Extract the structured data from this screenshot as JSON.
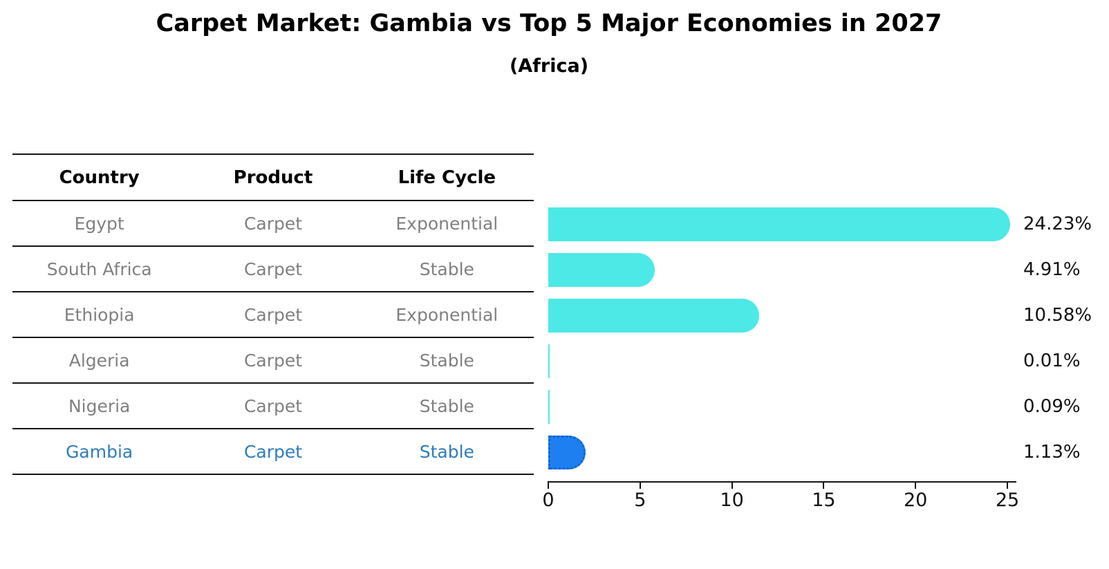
{
  "title": "Carpet Market: Gambia vs Top 5 Major Economies in 2027",
  "subtitle": "(Africa)",
  "colors": {
    "bar_default": "#4DE9E6",
    "bar_highlight": "#1E80F0",
    "highlight_text": "#2E7CBE",
    "row_text": "#808080",
    "header_text": "#000000",
    "axis_line": "#151515"
  },
  "table": {
    "headers": [
      "Country",
      "Product",
      "Life Cycle"
    ],
    "rows": [
      {
        "country": "Egypt",
        "product": "Carpet",
        "life_cycle": "Exponential",
        "highlight": false
      },
      {
        "country": "South Africa",
        "product": "Carpet",
        "life_cycle": "Stable",
        "highlight": false
      },
      {
        "country": "Ethiopia",
        "product": "Carpet",
        "life_cycle": "Exponential",
        "highlight": false
      },
      {
        "country": "Algeria",
        "product": "Carpet",
        "life_cycle": "Stable",
        "highlight": false
      },
      {
        "country": "Nigeria",
        "product": "Carpet",
        "life_cycle": "Stable",
        "highlight": false
      },
      {
        "country": "Gambia",
        "product": "Carpet",
        "life_cycle": "Stable",
        "highlight": true
      }
    ]
  },
  "chart_data": {
    "type": "bar",
    "orientation": "horizontal",
    "title": "Carpet Market: Gambia vs Top 5 Major Economies in 2027",
    "subtitle": "(Africa)",
    "categories": [
      "Egypt",
      "South Africa",
      "Ethiopia",
      "Algeria",
      "Nigeria",
      "Gambia"
    ],
    "values": [
      24.23,
      4.91,
      10.58,
      0.01,
      0.09,
      1.13
    ],
    "value_labels": [
      "24.23%",
      "4.91%",
      "10.58%",
      "0.01%",
      "0.09%",
      "1.13%"
    ],
    "unit": "%",
    "highlight_category": "Gambia",
    "x_ticks": [
      0,
      5,
      10,
      15,
      20,
      25
    ],
    "xlim": [
      0,
      25.5
    ],
    "xlabel": "",
    "ylabel": "",
    "grid": false,
    "legend": false
  }
}
